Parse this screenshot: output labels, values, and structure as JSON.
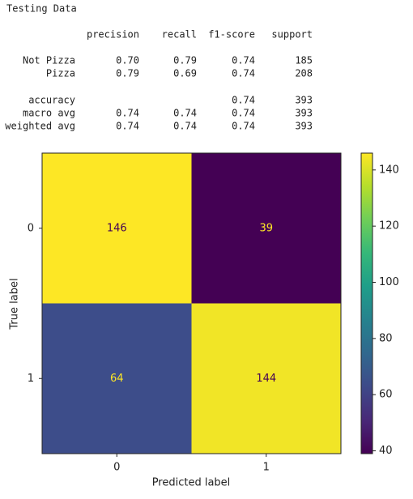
{
  "report": {
    "title": "Testing Data",
    "headers": [
      "precision",
      "recall",
      "f1-score",
      "support"
    ],
    "rows": [
      {
        "label": "Not Pizza",
        "values": [
          "0.70",
          "0.79",
          "0.74",
          "185"
        ]
      },
      {
        "label": "Pizza",
        "values": [
          "0.79",
          "0.69",
          "0.74",
          "208"
        ]
      },
      {
        "label": "accuracy",
        "values": [
          null,
          null,
          "0.74",
          "393"
        ]
      },
      {
        "label": "macro avg",
        "values": [
          "0.74",
          "0.74",
          "0.74",
          "393"
        ]
      },
      {
        "label": "weighted avg",
        "values": [
          "0.74",
          "0.74",
          "0.74",
          "393"
        ]
      }
    ]
  },
  "chart_data": {
    "type": "heatmap",
    "x_categories": [
      "0",
      "1"
    ],
    "y_categories": [
      "0",
      "1"
    ],
    "values": [
      [
        146,
        39
      ],
      [
        64,
        144
      ]
    ],
    "xlabel": "Predicted label",
    "ylabel": "True label",
    "zlim": [
      39,
      146
    ],
    "zticks": [
      40,
      60,
      80,
      100,
      120,
      140
    ],
    "colormap": [
      "#440154",
      "#482878",
      "#3e4a89",
      "#31688e",
      "#26828e",
      "#1f9e89",
      "#35b779",
      "#6ece58",
      "#b5de2b",
      "#fde725"
    ]
  }
}
